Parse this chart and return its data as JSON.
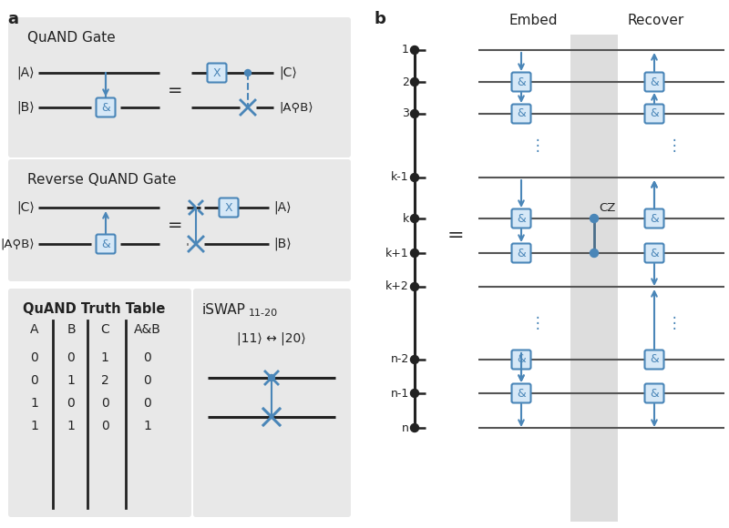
{
  "blue": "#4a86b8",
  "blue_fill": "#d6e8f7",
  "black": "#222222",
  "gray_bg": "#e8e8e8",
  "white": "#ffffff",
  "quand_title": "QuAND Gate",
  "rev_quand_title": "Reverse QuAND Gate",
  "truth_title": "QuAND Truth Table",
  "iswap_title": "iSWAP",
  "iswap_sub": "11-20",
  "iswap_eq": "|11⟩ ↔ |20⟩",
  "embed_label": "Embed",
  "recover_label": "Recover",
  "truth_headers": [
    "A",
    "B",
    "C",
    "A&B"
  ],
  "truth_data": [
    [
      0,
      0,
      1,
      0
    ],
    [
      0,
      1,
      2,
      0
    ],
    [
      1,
      0,
      0,
      0
    ],
    [
      1,
      1,
      0,
      1
    ]
  ],
  "wire_labels": [
    "1",
    "2",
    "3",
    "k-1",
    "k",
    "k+1",
    "k+2",
    "n-2",
    "n-1",
    "n"
  ]
}
